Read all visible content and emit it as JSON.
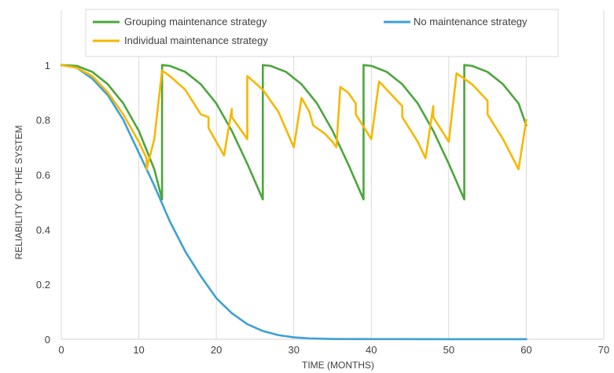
{
  "chart_data": {
    "type": "line",
    "title": "",
    "xlabel": "TIME (MONTHS)",
    "ylabel": "RELIABILITY OF THE SYSTEM",
    "xlim": [
      0,
      70
    ],
    "ylim": [
      0,
      1.2
    ],
    "x_ticks": [
      0,
      10,
      20,
      30,
      40,
      50,
      60,
      70
    ],
    "y_ticks": [
      0,
      0.2,
      0.4,
      0.6,
      0.8,
      1
    ],
    "x_tick_labels": [
      "0",
      "10",
      "20",
      "30",
      "40",
      "50",
      "60",
      "70"
    ],
    "y_tick_labels": [
      "0",
      "0.2",
      "0.4",
      "0.6",
      "0.8",
      "1"
    ],
    "grid": "vertical",
    "legend_position": "top",
    "colors": {
      "grouping": "#4ca63c",
      "none": "#3fa0d6",
      "individual": "#f5b800",
      "grid": "#d9d9d9",
      "axis": "#404040"
    },
    "series": [
      {
        "name": "Grouping maintenance strategy",
        "color": "#4ca63c",
        "points": [
          [
            0,
            1
          ],
          [
            2,
            0.997
          ],
          [
            4,
            0.975
          ],
          [
            6,
            0.93
          ],
          [
            8,
            0.86
          ],
          [
            10,
            0.76
          ],
          [
            12,
            0.62
          ],
          [
            13,
            0.51
          ],
          [
            13,
            1.0
          ],
          [
            14,
            0.997
          ],
          [
            16,
            0.975
          ],
          [
            18,
            0.93
          ],
          [
            20,
            0.86
          ],
          [
            22,
            0.76
          ],
          [
            24,
            0.64
          ],
          [
            26,
            0.51
          ],
          [
            26,
            1.0
          ],
          [
            27,
            0.997
          ],
          [
            29,
            0.975
          ],
          [
            31,
            0.93
          ],
          [
            33,
            0.86
          ],
          [
            35,
            0.76
          ],
          [
            37,
            0.64
          ],
          [
            39,
            0.51
          ],
          [
            39,
            1.0
          ],
          [
            40,
            0.997
          ],
          [
            42,
            0.975
          ],
          [
            44,
            0.93
          ],
          [
            46,
            0.86
          ],
          [
            48,
            0.76
          ],
          [
            50,
            0.64
          ],
          [
            52,
            0.51
          ],
          [
            52,
            1.0
          ],
          [
            53,
            0.997
          ],
          [
            55,
            0.975
          ],
          [
            57,
            0.93
          ],
          [
            59,
            0.86
          ],
          [
            60,
            0.78
          ]
        ]
      },
      {
        "name": "No maintenance strategy",
        "color": "#3fa0d6",
        "points": [
          [
            0,
            1
          ],
          [
            2,
            0.99
          ],
          [
            4,
            0.95
          ],
          [
            6,
            0.89
          ],
          [
            8,
            0.8
          ],
          [
            10,
            0.68
          ],
          [
            12,
            0.56
          ],
          [
            14,
            0.43
          ],
          [
            16,
            0.32
          ],
          [
            18,
            0.23
          ],
          [
            20,
            0.15
          ],
          [
            22,
            0.095
          ],
          [
            24,
            0.055
          ],
          [
            26,
            0.03
          ],
          [
            28,
            0.015
          ],
          [
            30,
            0.007
          ],
          [
            32,
            0.003
          ],
          [
            35,
            0.001
          ],
          [
            40,
            0.0005
          ],
          [
            50,
            0.0003
          ],
          [
            60,
            0.0003
          ]
        ]
      },
      {
        "name": "Individual maintenance strategy",
        "color": "#f5b800",
        "points": [
          [
            0,
            1
          ],
          [
            2,
            0.99
          ],
          [
            4,
            0.96
          ],
          [
            6,
            0.9
          ],
          [
            8,
            0.82
          ],
          [
            10,
            0.72
          ],
          [
            11,
            0.66
          ],
          [
            11,
            0.62
          ],
          [
            12,
            0.73
          ],
          [
            12.2,
            0.78
          ],
          [
            13,
            0.98
          ],
          [
            14,
            0.96
          ],
          [
            16,
            0.91
          ],
          [
            18,
            0.82
          ],
          [
            19,
            0.81
          ],
          [
            19,
            0.77
          ],
          [
            21,
            0.67
          ],
          [
            22,
            0.84
          ],
          [
            22,
            0.81
          ],
          [
            24,
            0.73
          ],
          [
            24,
            0.96
          ],
          [
            26,
            0.91
          ],
          [
            28,
            0.83
          ],
          [
            30,
            0.7
          ],
          [
            31,
            0.88
          ],
          [
            32,
            0.83
          ],
          [
            32.5,
            0.78
          ],
          [
            34,
            0.75
          ],
          [
            35,
            0.72
          ],
          [
            35.5,
            0.7
          ],
          [
            36,
            0.92
          ],
          [
            37,
            0.9
          ],
          [
            38,
            0.86
          ],
          [
            38,
            0.82
          ],
          [
            40,
            0.73
          ],
          [
            41,
            0.94
          ],
          [
            43,
            0.88
          ],
          [
            44,
            0.85
          ],
          [
            44,
            0.81
          ],
          [
            46,
            0.72
          ],
          [
            47,
            0.66
          ],
          [
            48,
            0.85
          ],
          [
            48,
            0.81
          ],
          [
            50,
            0.72
          ],
          [
            51,
            0.97
          ],
          [
            53,
            0.93
          ],
          [
            55,
            0.87
          ],
          [
            55,
            0.82
          ],
          [
            57,
            0.73
          ],
          [
            59,
            0.62
          ],
          [
            60,
            0.8
          ]
        ]
      }
    ],
    "legend": [
      "Grouping maintenance strategy",
      "No maintenance strategy",
      "Individual maintenance strategy"
    ]
  }
}
